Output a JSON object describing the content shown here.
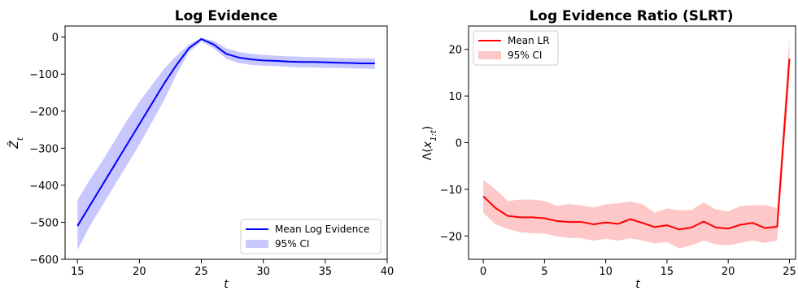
{
  "chart_data": [
    {
      "type": "line",
      "title": "Log Evidence",
      "xlabel": "t",
      "ylabel": "Ẑ_t",
      "xlim": [
        14,
        40
      ],
      "ylim": [
        -600,
        30
      ],
      "xticks": [
        15,
        20,
        25,
        30,
        35,
        40
      ],
      "yticks": [
        0,
        -100,
        -200,
        -300,
        -400,
        -500,
        -600
      ],
      "xtick_labels": [
        "15",
        "20",
        "25",
        "30",
        "35",
        "40"
      ],
      "ytick_labels": [
        "0",
        "−100",
        "−200",
        "−300",
        "−400",
        "−500",
        "−600"
      ],
      "grid": false,
      "legend_position": "lower-right",
      "colors": {
        "line": "#0000ff",
        "band": "#c8c8ff",
        "legend_edge": "#cccccc"
      },
      "x": [
        15,
        16,
        17,
        18,
        19,
        20,
        21,
        22,
        23,
        24,
        25,
        26,
        27,
        28,
        29,
        30,
        31,
        32,
        33,
        34,
        35,
        36,
        37,
        38,
        39
      ],
      "series": [
        {
          "name": "Mean Log Evidence",
          "kind": "line",
          "values": [
            -510,
            -455,
            -400,
            -345,
            -290,
            -235,
            -180,
            -125,
            -75,
            -30,
            -5,
            -20,
            -45,
            -55,
            -60,
            -63,
            -64,
            -66,
            -67,
            -67,
            -68,
            -69,
            -70,
            -71,
            -71
          ]
        },
        {
          "name": "95% CI",
          "kind": "band",
          "lower": [
            -575,
            -510,
            -455,
            -400,
            -345,
            -290,
            -230,
            -170,
            -100,
            -40,
            -12,
            -30,
            -58,
            -70,
            -75,
            -77,
            -78,
            -80,
            -82,
            -82,
            -83,
            -83,
            -84,
            -85,
            -86
          ],
          "upper": [
            -440,
            -385,
            -335,
            -280,
            -225,
            -175,
            -130,
            -85,
            -50,
            -20,
            -2,
            -10,
            -30,
            -40,
            -45,
            -48,
            -50,
            -52,
            -53,
            -54,
            -55,
            -56,
            -57,
            -57,
            -58
          ]
        }
      ]
    },
    {
      "type": "line",
      "title": "Log Evidence Ratio (SLRT)",
      "xlabel": "t",
      "ylabel": "Λ(x_{1:t})",
      "xlim": [
        -1.2,
        25.5
      ],
      "ylim": [
        -25,
        25
      ],
      "xticks": [
        0,
        5,
        10,
        15,
        20,
        25
      ],
      "yticks": [
        20,
        10,
        0,
        -10,
        -20
      ],
      "xtick_labels": [
        "0",
        "5",
        "10",
        "15",
        "20",
        "25"
      ],
      "ytick_labels": [
        "20",
        "10",
        "0",
        "−10",
        "−20"
      ],
      "grid": false,
      "legend_position": "upper-left",
      "colors": {
        "line": "#ff0000",
        "band": "#ffc8c8",
        "legend_edge": "#cccccc"
      },
      "x": [
        0,
        1,
        2,
        3,
        4,
        5,
        6,
        7,
        8,
        9,
        10,
        11,
        12,
        13,
        14,
        15,
        16,
        17,
        18,
        19,
        20,
        21,
        22,
        23,
        24,
        25
      ],
      "series": [
        {
          "name": "Mean LR",
          "kind": "line",
          "values": [
            -11.5,
            -14,
            -15.7,
            -16,
            -16,
            -16.2,
            -16.8,
            -17,
            -17,
            -17.5,
            -17.1,
            -17.4,
            -16.4,
            -17.2,
            -18.1,
            -17.7,
            -18.6,
            -18.2,
            -16.9,
            -18.2,
            -18.4,
            -17.6,
            -17.2,
            -18.3,
            -18,
            18
          ]
        },
        {
          "name": "95% CI",
          "kind": "band",
          "lower": [
            -15,
            -17.5,
            -18.5,
            -19.2,
            -19.4,
            -19.5,
            -20.1,
            -20.4,
            -20.5,
            -21,
            -20.6,
            -21,
            -20.5,
            -21,
            -21.6,
            -21.3,
            -22.7,
            -22,
            -21,
            -21.8,
            -22,
            -21.5,
            -21,
            -21.5,
            -21,
            14
          ],
          "upper": [
            -8,
            -10,
            -12.5,
            -12.2,
            -12.2,
            -12.5,
            -13.5,
            -13.2,
            -13.4,
            -13.9,
            -13.2,
            -13,
            -12.6,
            -13.2,
            -15,
            -14.1,
            -14.5,
            -14.4,
            -12.8,
            -14.3,
            -14.7,
            -13.6,
            -13.4,
            -13.4,
            -14,
            22.5
          ]
        }
      ]
    }
  ]
}
